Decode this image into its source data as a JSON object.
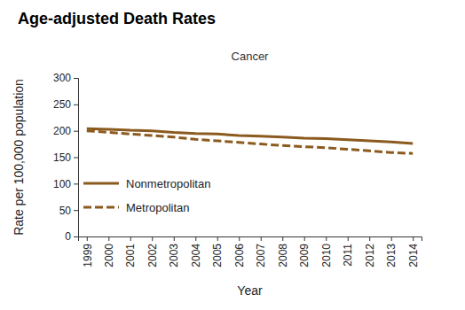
{
  "chart_data": {
    "type": "line",
    "title": "Age-adjusted Death Rates",
    "subtitle": "Cancer",
    "x_label": "Year",
    "y_label": "Rate per 100,000 population",
    "x": [
      1999,
      2000,
      2001,
      2002,
      2003,
      2004,
      2005,
      2006,
      2007,
      2008,
      2009,
      2010,
      2011,
      2012,
      2013,
      2014
    ],
    "series": [
      {
        "name": "Nonmetropolitan",
        "color": "#8b5a1e",
        "line_style": "solid",
        "values": [
          204,
          203,
          201,
          200,
          197,
          195,
          194,
          191,
          190,
          188,
          186,
          185,
          183,
          181,
          179,
          176
        ]
      },
      {
        "name": "Metropolitan",
        "color": "#8b5a1e",
        "line_style": "dashed",
        "values": [
          200,
          197,
          194,
          191,
          188,
          184,
          181,
          178,
          175,
          172,
          170,
          168,
          165,
          162,
          159,
          157
        ]
      }
    ],
    "xlim": [
      1998.6,
      2014.4
    ],
    "xticks": [
      1999,
      2000,
      2001,
      2002,
      2003,
      2004,
      2005,
      2006,
      2007,
      2008,
      2009,
      2010,
      2011,
      2012,
      2013,
      2014
    ],
    "ylim": [
      0,
      300
    ],
    "yticks": [
      0,
      50,
      100,
      150,
      200,
      250,
      300
    ],
    "grid": false,
    "legend": "lower left"
  }
}
